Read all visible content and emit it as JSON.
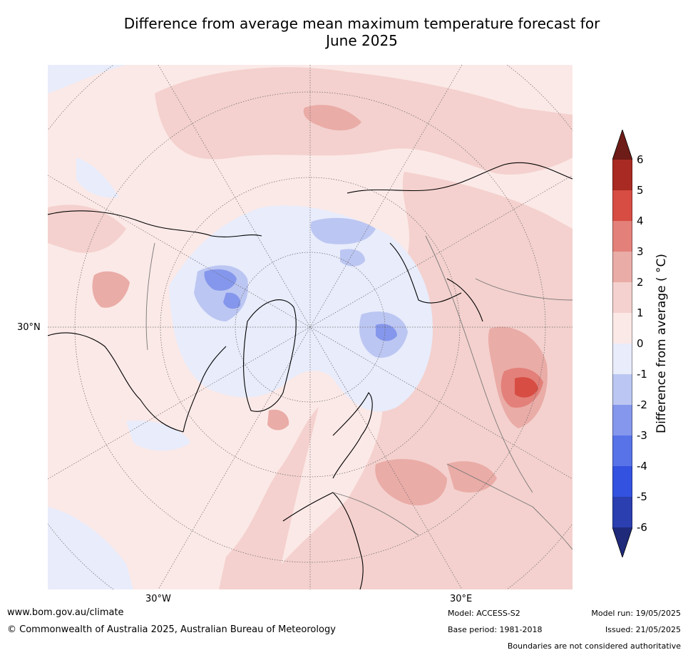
{
  "title_line1": "Difference from average mean maximum temperature forecast for",
  "title_line2": "June 2025",
  "graticule_labels": {
    "lat_30n": "30°N",
    "lon_30w": "30°W",
    "lon_30e": "30°E"
  },
  "colorbar": {
    "label": "Difference from average ( °C)",
    "ticks": [
      "6",
      "5",
      "4",
      "3",
      "2",
      "1",
      "0",
      "-1",
      "-2",
      "-3",
      "-4",
      "-5",
      "-6"
    ],
    "colors": [
      "#1f2a7a",
      "#2b3fb0",
      "#3452e0",
      "#5873e8",
      "#8597ec",
      "#bcc6f2",
      "#e8ecfb",
      "#fbe9e7",
      "#f4d1ce",
      "#eaaca7",
      "#e3807a",
      "#d74d43",
      "#a92a22",
      "#6e1c17"
    ]
  },
  "footer": {
    "website": "www.bom.gov.au/climate",
    "copyright": "© Commonwealth of Australia 2025, Australian Bureau of Meteorology",
    "model": "Model: ACCESS-S2",
    "base_period": "Base period: 1981-2018",
    "model_run": "Model run: 19/05/2025",
    "issued": "Issued: 21/05/2025",
    "disclaimer": "Boundaries are not considered authoritative"
  }
}
